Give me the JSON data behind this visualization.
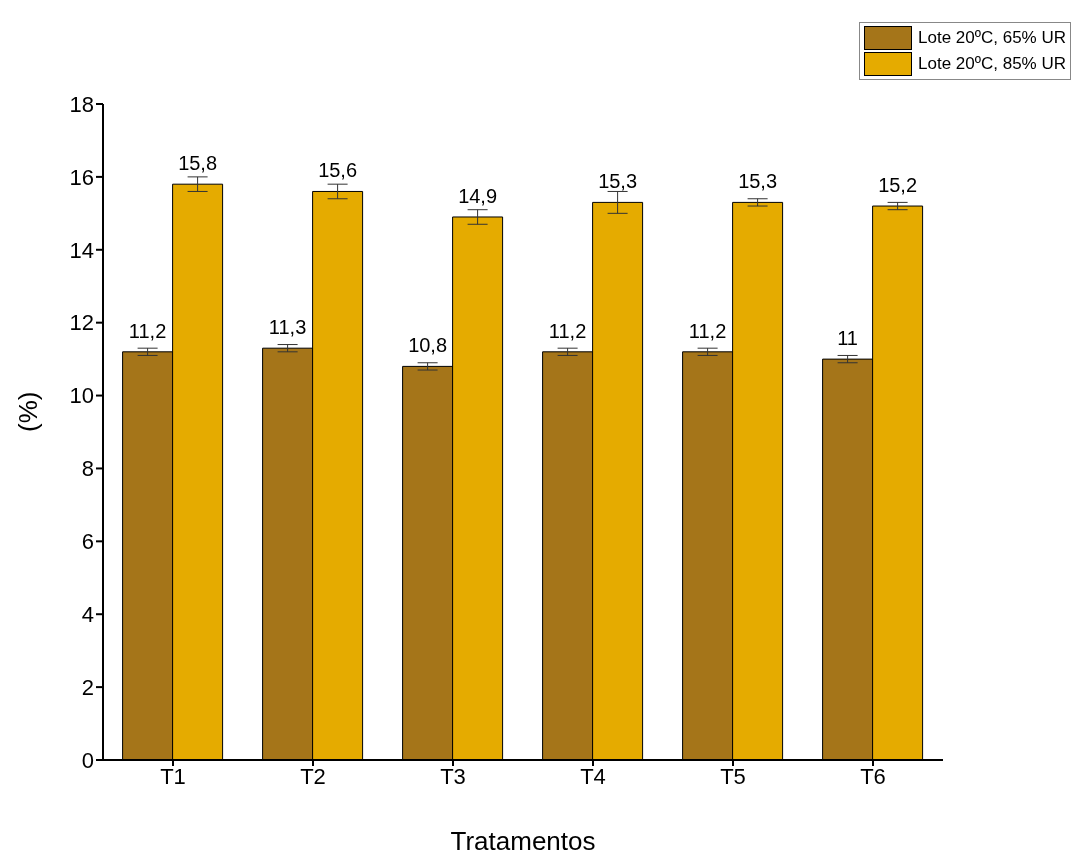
{
  "chart_data": {
    "type": "bar",
    "xlabel": "Tratamentos",
    "ylabel": "(%)",
    "categories": [
      "T1",
      "T2",
      "T3",
      "T4",
      "T5",
      "T6"
    ],
    "series": [
      {
        "name": "Lote 20ºC, 65% UR",
        "color": "#a57519",
        "values": [
          11.2,
          11.3,
          10.8,
          11.2,
          11.2,
          11.0
        ],
        "errors": [
          0.1,
          0.1,
          0.1,
          0.1,
          0.1,
          0.1
        ],
        "value_labels": [
          "11,2",
          "11,3",
          "10,8",
          "11,2",
          "11,2",
          "11"
        ]
      },
      {
        "name": "Lote 20ºC, 85% UR",
        "color": "#e5ab00",
        "values": [
          15.8,
          15.6,
          14.9,
          15.3,
          15.3,
          15.2
        ],
        "errors": [
          0.2,
          0.2,
          0.2,
          0.3,
          0.1,
          0.1
        ],
        "value_labels": [
          "15,8",
          "15,6",
          "14,9",
          "15,3",
          "15,3",
          "15,2"
        ]
      }
    ],
    "ylim": [
      0,
      18
    ],
    "yticks": [
      0,
      2,
      4,
      6,
      8,
      10,
      12,
      14,
      16,
      18
    ],
    "grid": false,
    "legend": "top right"
  }
}
